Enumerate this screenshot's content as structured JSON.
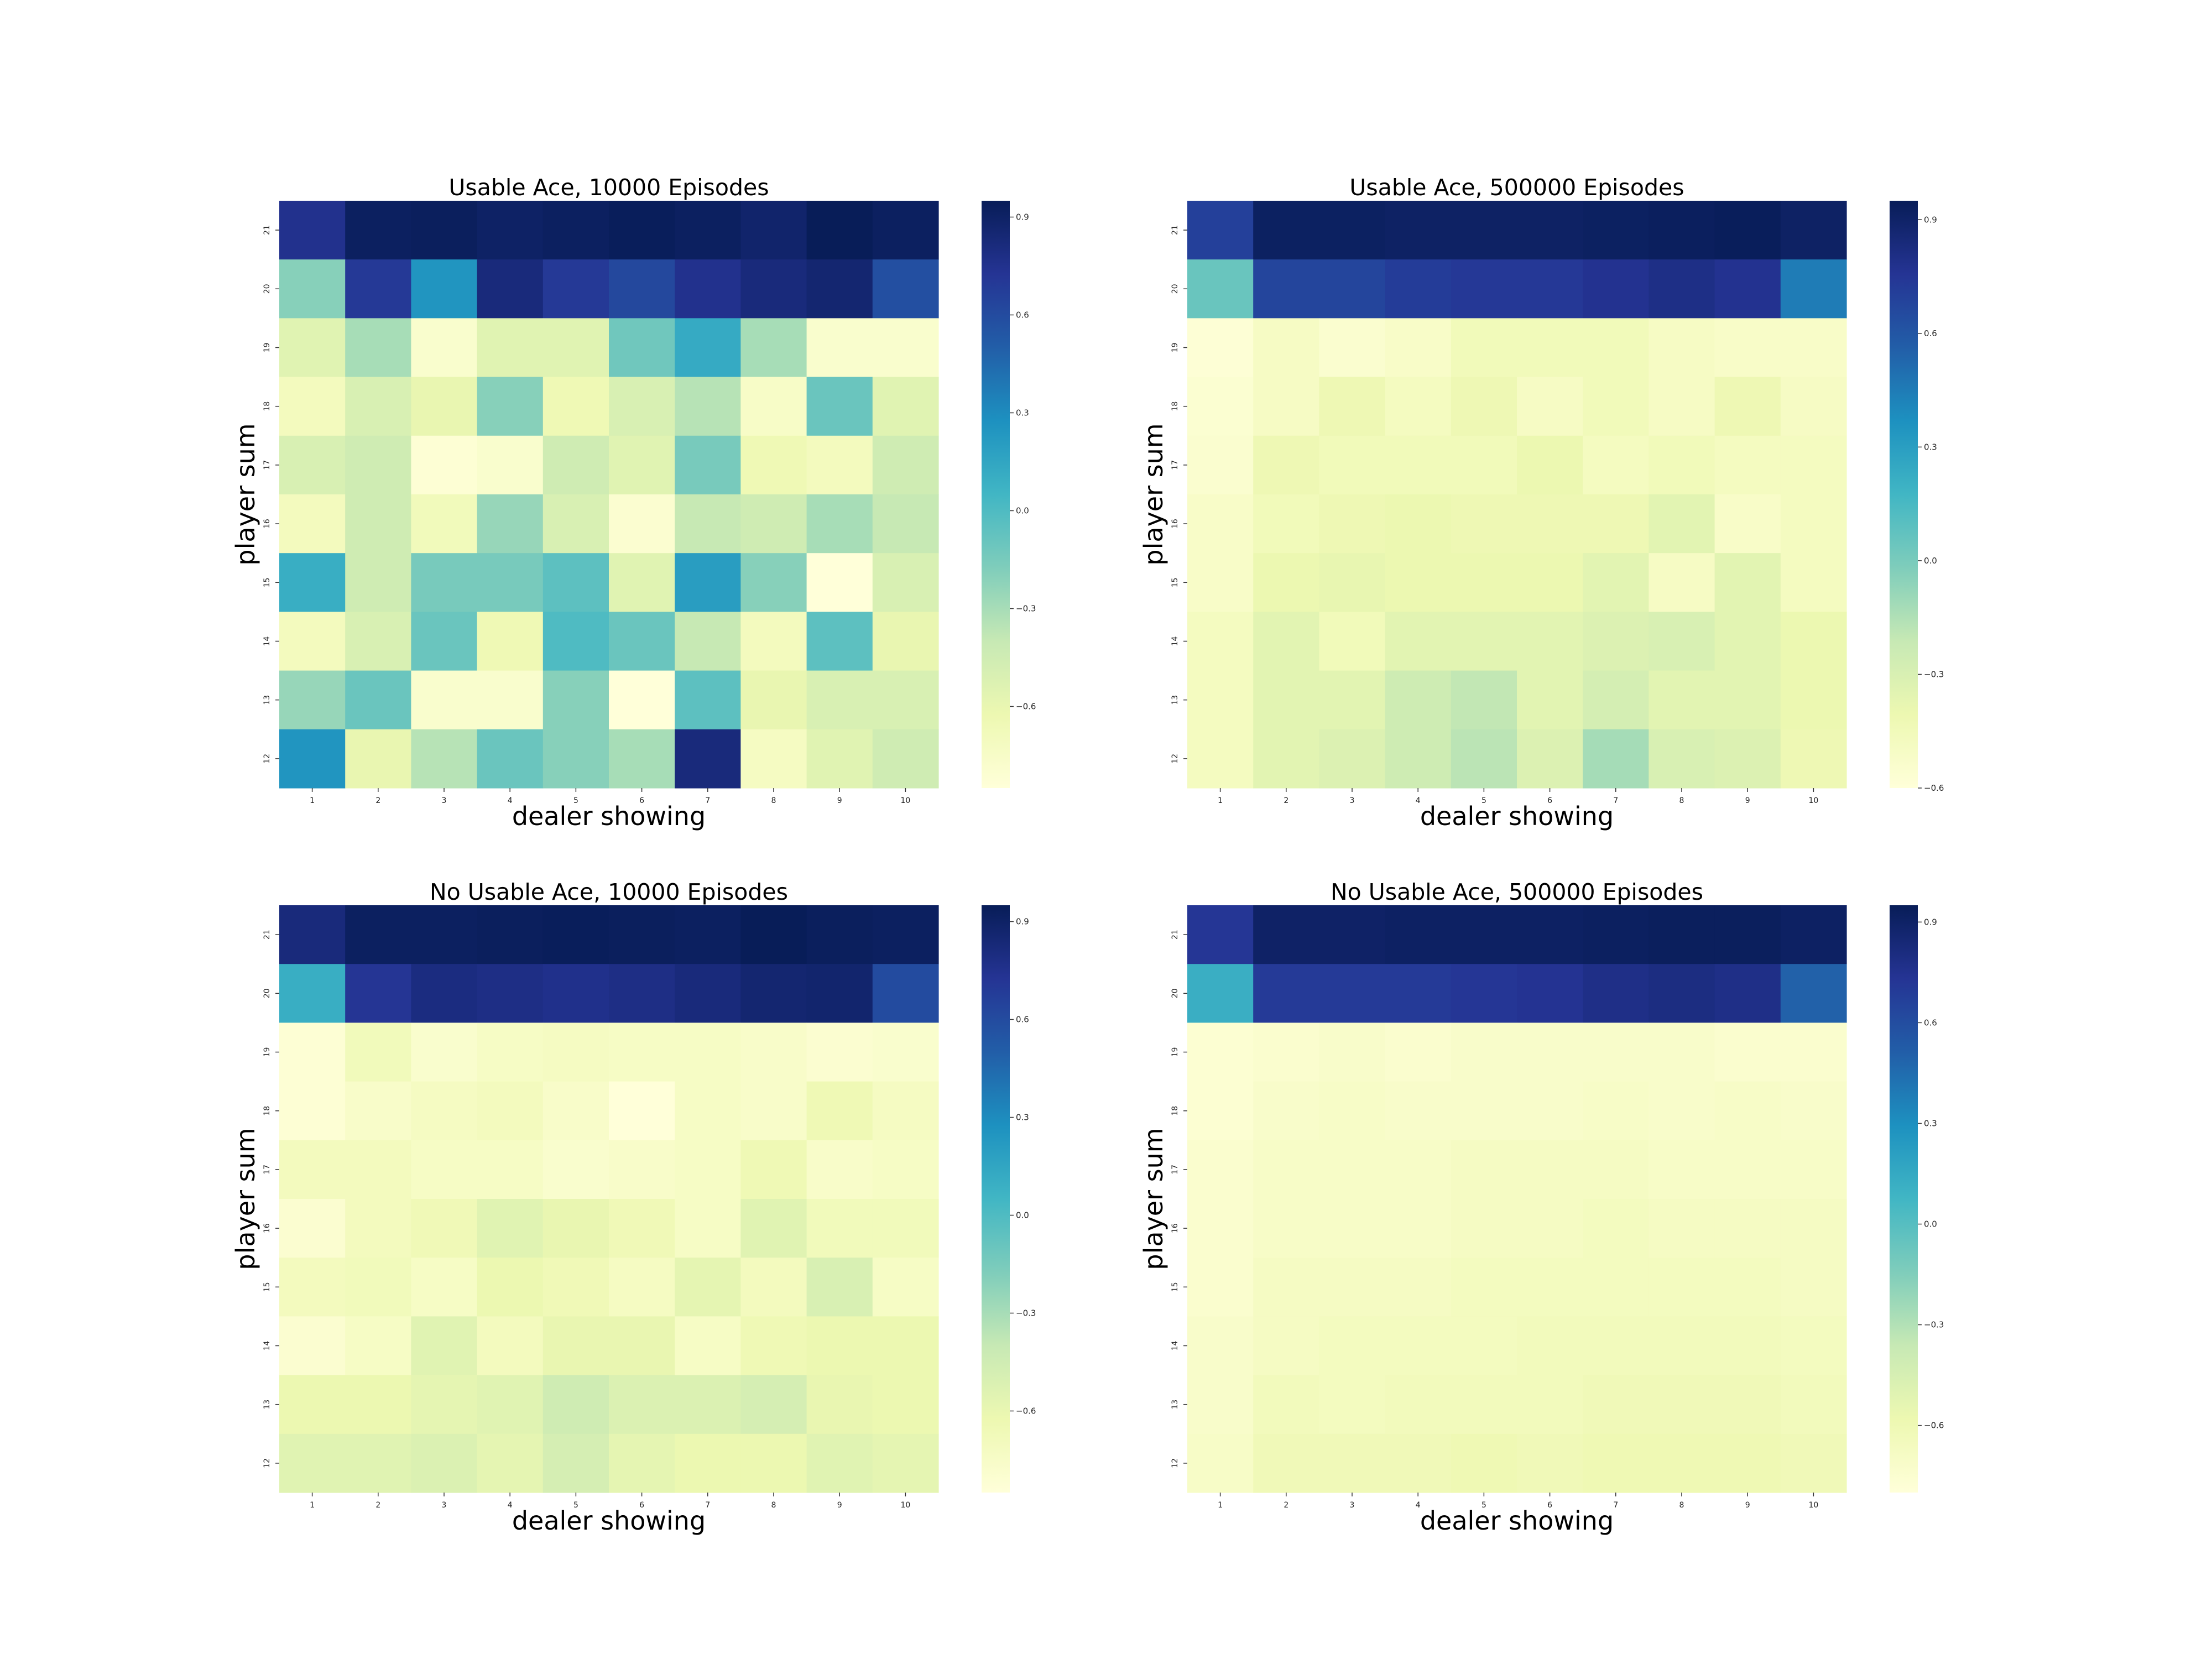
{
  "chart_data": [
    {
      "type": "heatmap",
      "title": "Usable Ace, 10000 Episodes",
      "xlabel": "dealer showing",
      "ylabel": "player sum",
      "x_categories": [
        "1",
        "2",
        "3",
        "4",
        "5",
        "6",
        "7",
        "8",
        "9",
        "10"
      ],
      "y_categories": [
        "21",
        "20",
        "19",
        "18",
        "17",
        "16",
        "15",
        "14",
        "13",
        "12"
      ],
      "colorbar": {
        "colormap": "YlGnBu",
        "vmin": -0.85,
        "vmax": 0.95,
        "ticks": [
          0.9,
          0.6,
          0.3,
          0.0,
          -0.3,
          -0.6
        ],
        "tick_labels": [
          "0.9",
          "0.6",
          "0.3",
          "0.0",
          "−0.3",
          "−0.6"
        ]
      },
      "values": [
        [
          0.75,
          0.92,
          0.93,
          0.9,
          0.92,
          0.94,
          0.92,
          0.88,
          0.96,
          0.92
        ],
        [
          -0.2,
          0.7,
          0.25,
          0.82,
          0.7,
          0.62,
          0.75,
          0.82,
          0.86,
          0.58
        ],
        [
          -0.55,
          -0.3,
          -0.78,
          -0.55,
          -0.55,
          -0.12,
          0.12,
          -0.3,
          -0.78,
          -0.78
        ],
        [
          -0.7,
          -0.5,
          -0.6,
          -0.2,
          -0.65,
          -0.5,
          -0.35,
          -0.75,
          -0.1,
          -0.55
        ],
        [
          -0.5,
          -0.45,
          -0.82,
          -0.78,
          -0.45,
          -0.55,
          -0.15,
          -0.65,
          -0.7,
          -0.45
        ],
        [
          -0.7,
          -0.45,
          -0.68,
          -0.25,
          -0.5,
          -0.8,
          -0.4,
          -0.45,
          -0.3,
          -0.4
        ],
        [
          0.1,
          -0.45,
          -0.15,
          -0.15,
          -0.05,
          -0.55,
          0.2,
          -0.2,
          -0.85,
          -0.5
        ],
        [
          -0.7,
          -0.5,
          -0.1,
          -0.65,
          0.0,
          -0.1,
          -0.4,
          -0.7,
          -0.05,
          -0.6
        ],
        [
          -0.25,
          -0.1,
          -0.78,
          -0.78,
          -0.2,
          -0.85,
          -0.05,
          -0.6,
          -0.5,
          -0.5
        ],
        [
          0.25,
          -0.6,
          -0.35,
          -0.1,
          -0.2,
          -0.3,
          0.82,
          -0.72,
          -0.55,
          -0.45
        ]
      ]
    },
    {
      "type": "heatmap",
      "title": "Usable Ace, 500000 Episodes",
      "xlabel": "dealer showing",
      "ylabel": "player sum",
      "x_categories": [
        "1",
        "2",
        "3",
        "4",
        "5",
        "6",
        "7",
        "8",
        "9",
        "10"
      ],
      "y_categories": [
        "21",
        "20",
        "19",
        "18",
        "17",
        "16",
        "15",
        "14",
        "13",
        "12"
      ],
      "colorbar": {
        "colormap": "YlGnBu",
        "vmin": -0.6,
        "vmax": 0.95,
        "ticks": [
          0.9,
          0.6,
          0.3,
          0.0,
          -0.3,
          -0.6
        ],
        "tick_labels": [
          "0.9",
          "0.6",
          "0.3",
          "0.0",
          "−0.3",
          "−0.6"
        ]
      },
      "values": [
        [
          0.7,
          0.92,
          0.92,
          0.91,
          0.91,
          0.91,
          0.92,
          0.93,
          0.94,
          0.91
        ],
        [
          0.05,
          0.68,
          0.68,
          0.72,
          0.74,
          0.74,
          0.77,
          0.8,
          0.77,
          0.45
        ],
        [
          -0.58,
          -0.5,
          -0.55,
          -0.52,
          -0.45,
          -0.45,
          -0.45,
          -0.5,
          -0.52,
          -0.52
        ],
        [
          -0.56,
          -0.5,
          -0.42,
          -0.48,
          -0.42,
          -0.5,
          -0.45,
          -0.5,
          -0.42,
          -0.5
        ],
        [
          -0.55,
          -0.42,
          -0.45,
          -0.45,
          -0.45,
          -0.4,
          -0.48,
          -0.45,
          -0.48,
          -0.48
        ],
        [
          -0.52,
          -0.45,
          -0.42,
          -0.4,
          -0.42,
          -0.42,
          -0.42,
          -0.35,
          -0.52,
          -0.48
        ],
        [
          -0.52,
          -0.4,
          -0.38,
          -0.4,
          -0.4,
          -0.4,
          -0.35,
          -0.5,
          -0.35,
          -0.48
        ],
        [
          -0.48,
          -0.35,
          -0.45,
          -0.35,
          -0.35,
          -0.35,
          -0.32,
          -0.3,
          -0.35,
          -0.4
        ],
        [
          -0.48,
          -0.35,
          -0.35,
          -0.25,
          -0.2,
          -0.35,
          -0.28,
          -0.35,
          -0.35,
          -0.4
        ],
        [
          -0.48,
          -0.35,
          -0.32,
          -0.25,
          -0.18,
          -0.32,
          -0.12,
          -0.3,
          -0.32,
          -0.42
        ]
      ]
    },
    {
      "type": "heatmap",
      "title": "No Usable Ace, 10000 Episodes",
      "xlabel": "dealer showing",
      "ylabel": "player sum",
      "x_categories": [
        "1",
        "2",
        "3",
        "4",
        "5",
        "6",
        "7",
        "8",
        "9",
        "10"
      ],
      "y_categories": [
        "21",
        "20",
        "19",
        "18",
        "17",
        "16",
        "15",
        "14",
        "13",
        "12"
      ],
      "colorbar": {
        "colormap": "YlGnBu",
        "vmin": -0.85,
        "vmax": 0.95,
        "ticks": [
          0.9,
          0.6,
          0.3,
          0.0,
          -0.3,
          -0.6
        ],
        "tick_labels": [
          "0.9",
          "0.6",
          "0.3",
          "0.0",
          "−0.3",
          "−0.6"
        ]
      },
      "values": [
        [
          0.82,
          0.92,
          0.92,
          0.93,
          0.94,
          0.93,
          0.92,
          0.95,
          0.93,
          0.92
        ],
        [
          0.1,
          0.72,
          0.8,
          0.78,
          0.76,
          0.78,
          0.82,
          0.86,
          0.87,
          0.6
        ],
        [
          -0.82,
          -0.68,
          -0.78,
          -0.74,
          -0.72,
          -0.74,
          -0.74,
          -0.76,
          -0.8,
          -0.78
        ],
        [
          -0.82,
          -0.76,
          -0.72,
          -0.7,
          -0.76,
          -0.85,
          -0.74,
          -0.76,
          -0.65,
          -0.72
        ],
        [
          -0.7,
          -0.7,
          -0.74,
          -0.74,
          -0.78,
          -0.76,
          -0.74,
          -0.65,
          -0.76,
          -0.74
        ],
        [
          -0.8,
          -0.7,
          -0.66,
          -0.55,
          -0.6,
          -0.66,
          -0.74,
          -0.55,
          -0.68,
          -0.68
        ],
        [
          -0.7,
          -0.68,
          -0.74,
          -0.62,
          -0.66,
          -0.72,
          -0.58,
          -0.7,
          -0.5,
          -0.74
        ],
        [
          -0.8,
          -0.74,
          -0.55,
          -0.7,
          -0.6,
          -0.6,
          -0.74,
          -0.65,
          -0.62,
          -0.62
        ],
        [
          -0.62,
          -0.62,
          -0.58,
          -0.55,
          -0.45,
          -0.52,
          -0.52,
          -0.48,
          -0.6,
          -0.62
        ],
        [
          -0.55,
          -0.55,
          -0.52,
          -0.58,
          -0.48,
          -0.58,
          -0.62,
          -0.62,
          -0.55,
          -0.58
        ]
      ]
    },
    {
      "type": "heatmap",
      "title": "No Usable Ace, 500000 Episodes",
      "xlabel": "dealer showing",
      "ylabel": "player sum",
      "x_categories": [
        "1",
        "2",
        "3",
        "4",
        "5",
        "6",
        "7",
        "8",
        "9",
        "10"
      ],
      "y_categories": [
        "21",
        "20",
        "19",
        "18",
        "17",
        "16",
        "15",
        "14",
        "13",
        "12"
      ],
      "colorbar": {
        "colormap": "YlGnBu",
        "vmin": -0.8,
        "vmax": 0.95,
        "ticks": [
          0.9,
          0.6,
          0.3,
          0.0,
          -0.3,
          -0.6
        ],
        "tick_labels": [
          "0.9",
          "0.6",
          "0.3",
          "0.0",
          "−0.3",
          "−0.6"
        ]
      },
      "values": [
        [
          0.72,
          0.9,
          0.9,
          0.91,
          0.91,
          0.91,
          0.92,
          0.93,
          0.93,
          0.91
        ],
        [
          0.12,
          0.7,
          0.7,
          0.7,
          0.72,
          0.74,
          0.78,
          0.8,
          0.78,
          0.5
        ],
        [
          -0.76,
          -0.74,
          -0.72,
          -0.74,
          -0.72,
          -0.72,
          -0.72,
          -0.72,
          -0.74,
          -0.74
        ],
        [
          -0.76,
          -0.72,
          -0.7,
          -0.72,
          -0.72,
          -0.72,
          -0.7,
          -0.72,
          -0.7,
          -0.72
        ],
        [
          -0.74,
          -0.7,
          -0.7,
          -0.7,
          -0.68,
          -0.68,
          -0.68,
          -0.7,
          -0.7,
          -0.7
        ],
        [
          -0.74,
          -0.7,
          -0.7,
          -0.7,
          -0.68,
          -0.68,
          -0.66,
          -0.68,
          -0.68,
          -0.68
        ],
        [
          -0.74,
          -0.68,
          -0.68,
          -0.68,
          -0.66,
          -0.66,
          -0.66,
          -0.66,
          -0.66,
          -0.68
        ],
        [
          -0.72,
          -0.68,
          -0.66,
          -0.66,
          -0.66,
          -0.64,
          -0.64,
          -0.64,
          -0.64,
          -0.66
        ],
        [
          -0.72,
          -0.64,
          -0.66,
          -0.64,
          -0.64,
          -0.64,
          -0.62,
          -0.62,
          -0.62,
          -0.64
        ],
        [
          -0.7,
          -0.62,
          -0.62,
          -0.62,
          -0.6,
          -0.62,
          -0.6,
          -0.6,
          -0.6,
          -0.62
        ]
      ]
    }
  ]
}
